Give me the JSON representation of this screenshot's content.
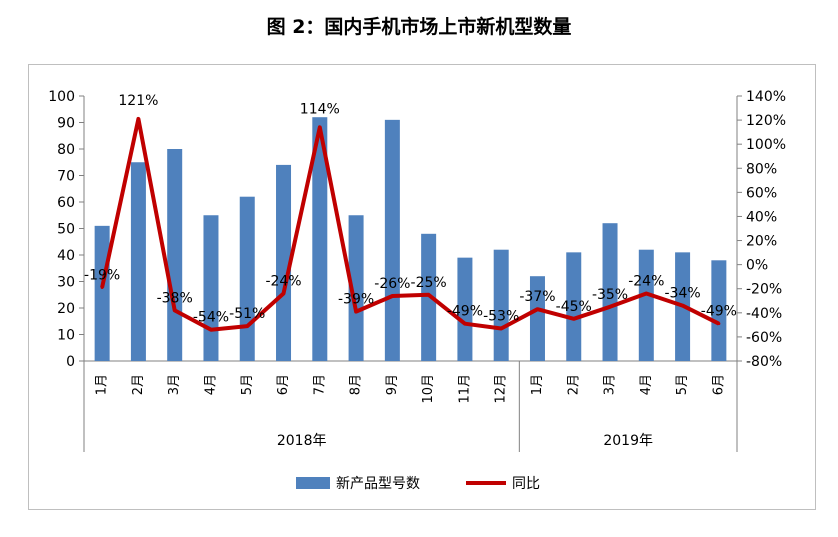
{
  "title": "图 2：国内手机市场上市新机型数量",
  "chart_data": {
    "type": "bar",
    "categories": [
      "1月",
      "2月",
      "3月",
      "4月",
      "5月",
      "6月",
      "7月",
      "8月",
      "9月",
      "10月",
      "11月",
      "12月",
      "1月",
      "2月",
      "3月",
      "4月",
      "5月",
      "6月"
    ],
    "groups": [
      {
        "label": "2018年",
        "start": 0,
        "end": 11
      },
      {
        "label": "2019年",
        "start": 12,
        "end": 17
      }
    ],
    "series": [
      {
        "name": "新产品型号数",
        "type": "bar",
        "axis": "left",
        "color": "#4f81bd",
        "values": [
          51,
          75,
          80,
          55,
          62,
          74,
          92,
          55,
          91,
          48,
          39,
          42,
          32,
          41,
          52,
          42,
          41,
          38
        ]
      },
      {
        "name": "同比",
        "type": "line",
        "axis": "right",
        "color": "#c00000",
        "values": [
          -19,
          121,
          -38,
          -54,
          -51,
          -24,
          114,
          -39,
          -26,
          -25,
          -49,
          -53,
          -37,
          -45,
          -35,
          -24,
          -34,
          -49
        ],
        "labels": [
          "-19%",
          "121%",
          "-38%",
          "-54%",
          "-51%",
          "-24%",
          "114%",
          "-39%",
          "-26%",
          "-25%",
          "-49%",
          "-53%",
          "-37%",
          "-45%",
          "-35%",
          "-24%",
          "-34%",
          "-49%"
        ]
      }
    ],
    "y_left": {
      "min": 0,
      "max": 100,
      "step": 10,
      "tick_labels": [
        "0",
        "10",
        "20",
        "30",
        "40",
        "50",
        "60",
        "70",
        "80",
        "90",
        "100"
      ]
    },
    "y_right": {
      "min": -80,
      "max": 140,
      "step": 20,
      "tick_labels": [
        "-80%",
        "-60%",
        "-40%",
        "-20%",
        "0%",
        "20%",
        "40%",
        "60%",
        "80%",
        "100%",
        "120%",
        "140%"
      ]
    },
    "legend": {
      "position": "bottom",
      "items": [
        "新产品型号数",
        "同比"
      ]
    },
    "grid": false
  }
}
